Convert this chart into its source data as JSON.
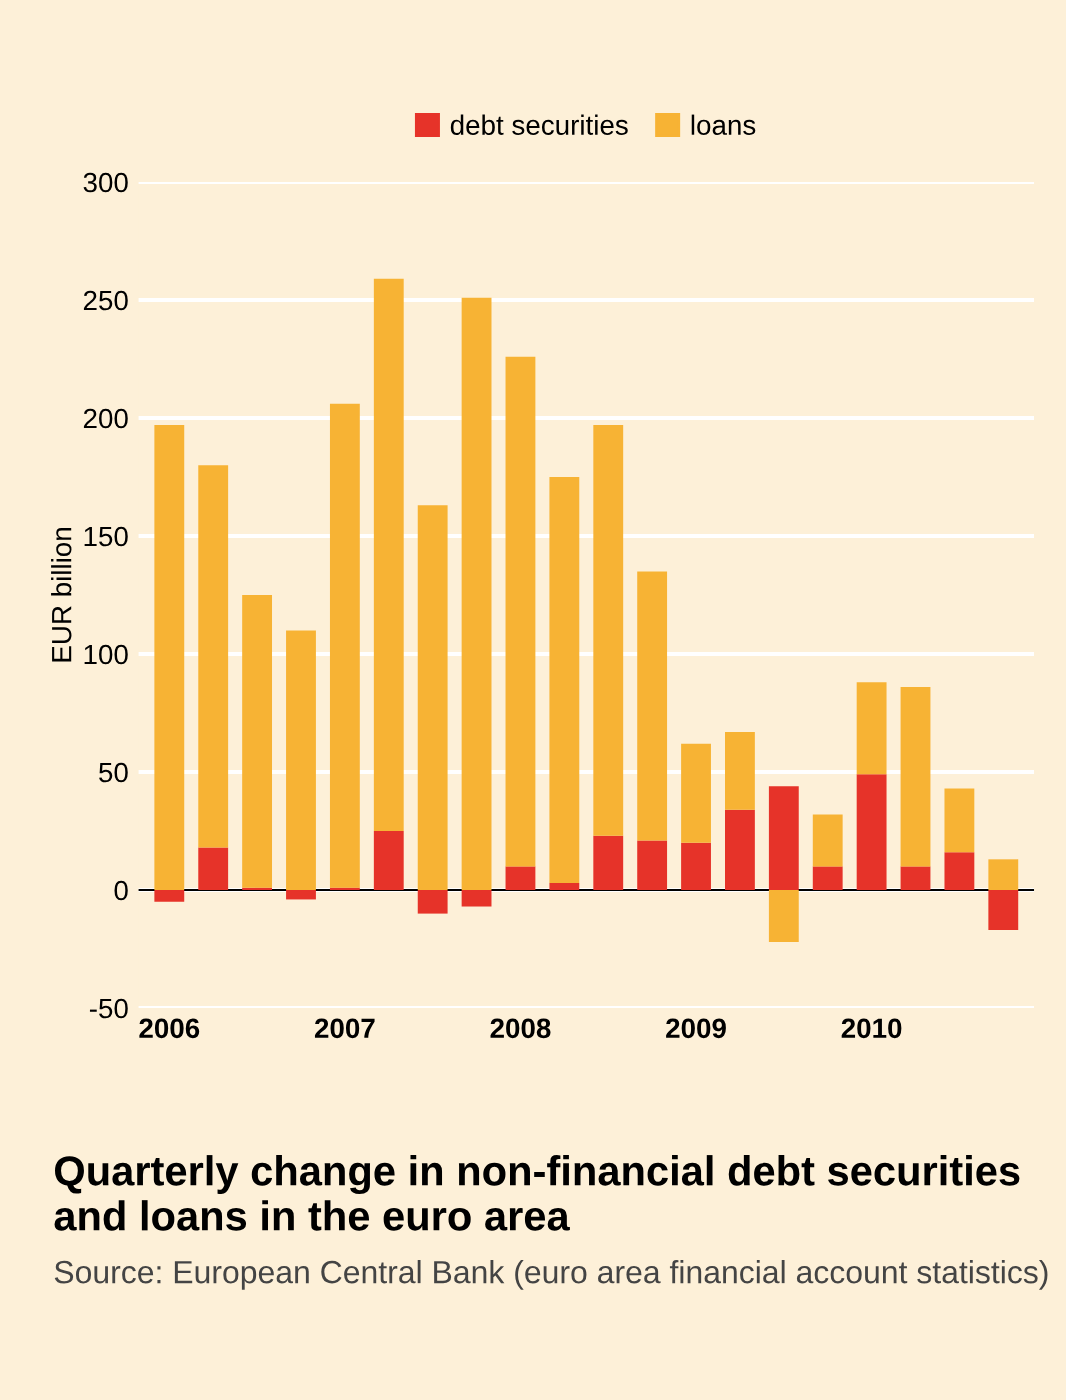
{
  "chart_data": {
    "type": "bar",
    "stacked": true,
    "title": "Quarterly change in non-financial debt securities and loans in the euro area",
    "ylabel": "EUR billion",
    "annotations": [
      "Source: European Central Bank (euro area financial account statistics)"
    ],
    "categories": [
      "2006",
      null,
      null,
      null,
      "2007",
      null,
      null,
      null,
      "2008",
      null,
      null,
      null,
      "2009",
      null,
      null,
      null,
      "2010",
      null,
      null,
      null
    ],
    "series": [
      {
        "name": "debt securities",
        "color": "#e63329",
        "values": [
          -5,
          18,
          1,
          -4,
          1,
          25,
          -10,
          -7,
          10,
          3,
          23,
          21,
          20,
          34,
          44,
          10,
          49,
          10,
          16,
          -17
        ]
      },
      {
        "name": "loans",
        "color": "#f7b334",
        "values": [
          197,
          162,
          124,
          110,
          205,
          234,
          163,
          251,
          216,
          172,
          174,
          114,
          42,
          33,
          -22,
          22,
          39,
          76,
          27,
          13
        ]
      }
    ],
    "ylim": [
      -50,
      300
    ],
    "yticks": [
      -50,
      0,
      50,
      100,
      150,
      200,
      250,
      300
    ],
    "grid": "y",
    "legend": "top"
  }
}
